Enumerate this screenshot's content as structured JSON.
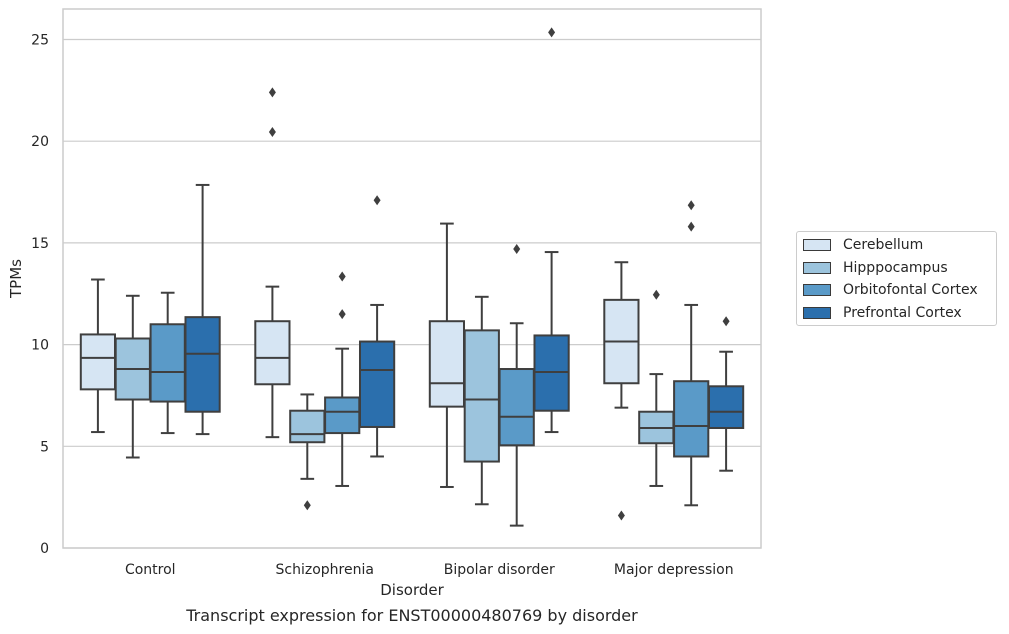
{
  "chart_data": {
    "type": "boxplot",
    "title": "",
    "caption": "Transcript expression for ENST00000480769 by disorder",
    "xlabel": "Disorder",
    "ylabel": "TPMs",
    "ylim": [
      0,
      26.5
    ],
    "yticks": [
      0,
      5,
      10,
      15,
      20,
      25
    ],
    "grid": "horizontal",
    "legend_position": "right",
    "categories": [
      "Control",
      "Schizophrenia",
      "Bipolar disorder",
      "Major depression"
    ],
    "series": [
      {
        "name": "Cerebellum",
        "color": "#d6e5f3",
        "boxes": [
          {
            "whislo": 5.7,
            "q1": 7.8,
            "med": 9.35,
            "q3": 10.5,
            "whishi": 13.2,
            "fliers": []
          },
          {
            "whislo": 5.45,
            "q1": 8.05,
            "med": 9.35,
            "q3": 11.15,
            "whishi": 12.85,
            "fliers": [
              20.45,
              22.4
            ]
          },
          {
            "whislo": 3.0,
            "q1": 6.95,
            "med": 8.1,
            "q3": 11.15,
            "whishi": 15.95,
            "fliers": []
          },
          {
            "whislo": 6.9,
            "q1": 8.1,
            "med": 10.15,
            "q3": 12.2,
            "whishi": 14.05,
            "fliers": [
              1.6
            ]
          }
        ]
      },
      {
        "name": "Hipppocampus",
        "color": "#9cc4dd",
        "boxes": [
          {
            "whislo": 4.45,
            "q1": 7.3,
            "med": 8.8,
            "q3": 10.3,
            "whishi": 12.4,
            "fliers": []
          },
          {
            "whislo": 3.4,
            "q1": 5.2,
            "med": 5.6,
            "q3": 6.75,
            "whishi": 7.55,
            "fliers": [
              2.1
            ]
          },
          {
            "whislo": 2.15,
            "q1": 4.25,
            "med": 7.3,
            "q3": 10.7,
            "whishi": 12.35,
            "fliers": []
          },
          {
            "whislo": 3.05,
            "q1": 5.15,
            "med": 5.9,
            "q3": 6.7,
            "whishi": 8.55,
            "fliers": [
              12.45
            ]
          }
        ]
      },
      {
        "name": "Orbitofontal Cortex",
        "color": "#5a9ac8",
        "boxes": [
          {
            "whislo": 5.65,
            "q1": 7.2,
            "med": 8.65,
            "q3": 11.0,
            "whishi": 12.55,
            "fliers": []
          },
          {
            "whislo": 3.05,
            "q1": 5.65,
            "med": 6.7,
            "q3": 7.4,
            "whishi": 9.8,
            "fliers": [
              11.5,
              13.35
            ]
          },
          {
            "whislo": 1.1,
            "q1": 5.05,
            "med": 6.45,
            "q3": 8.8,
            "whishi": 11.05,
            "fliers": [
              14.7
            ]
          },
          {
            "whislo": 2.1,
            "q1": 4.5,
            "med": 6.0,
            "q3": 8.2,
            "whishi": 11.95,
            "fliers": [
              15.8,
              16.85
            ]
          }
        ]
      },
      {
        "name": "Prefrontal Cortex",
        "color": "#2b6fad",
        "boxes": [
          {
            "whislo": 5.6,
            "q1": 6.7,
            "med": 9.55,
            "q3": 11.35,
            "whishi": 17.85,
            "fliers": []
          },
          {
            "whislo": 4.5,
            "q1": 5.95,
            "med": 8.75,
            "q3": 10.15,
            "whishi": 11.95,
            "fliers": [
              17.1
            ]
          },
          {
            "whislo": 5.7,
            "q1": 6.75,
            "med": 8.65,
            "q3": 10.45,
            "whishi": 14.55,
            "fliers": [
              25.35
            ]
          },
          {
            "whislo": 3.8,
            "q1": 5.9,
            "med": 6.7,
            "q3": 7.95,
            "whishi": 9.65,
            "fliers": [
              11.15
            ]
          }
        ]
      }
    ]
  }
}
